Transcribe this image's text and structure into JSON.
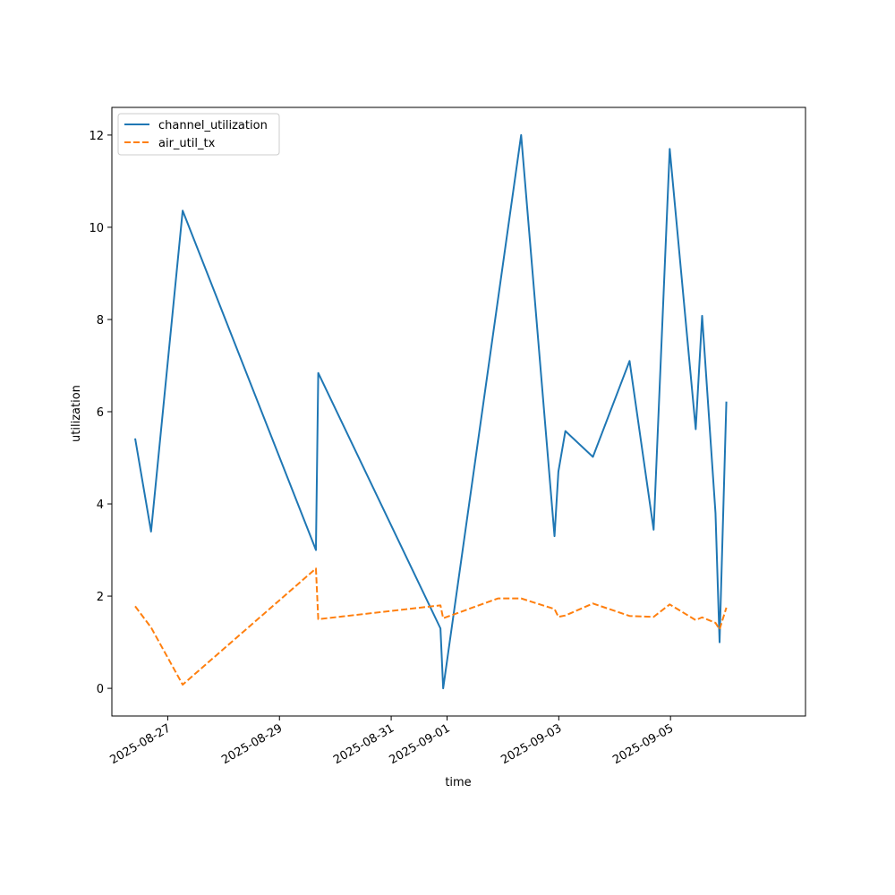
{
  "chart_data": {
    "type": "line",
    "xlabel": "time",
    "ylabel": "utilization",
    "x_is_date": true,
    "xlim": [
      "2025-08-26T00:00",
      "2025-09-07T10:00"
    ],
    "ylim": [
      -0.6,
      12.6
    ],
    "xticks": [
      "2025-08-27",
      "2025-08-29",
      "2025-08-31",
      "2025-09-01",
      "2025-09-03",
      "2025-09-05"
    ],
    "yticks": [
      0,
      2,
      4,
      6,
      8,
      10,
      12
    ],
    "grid": false,
    "legend_position": "top-left",
    "series": [
      {
        "name": "channel_utilization",
        "color": "#1f77b4",
        "style": "solid",
        "points": [
          {
            "x": "2025-08-26T10:00",
            "y": 5.42
          },
          {
            "x": "2025-08-26T16:50",
            "y": 3.4
          },
          {
            "x": "2025-08-27T06:25",
            "y": 10.36
          },
          {
            "x": "2025-08-29T15:40",
            "y": 3.0
          },
          {
            "x": "2025-08-29T16:40",
            "y": 6.84
          },
          {
            "x": "2025-08-31T21:10",
            "y": 1.3
          },
          {
            "x": "2025-08-31T22:20",
            "y": 0.0
          },
          {
            "x": "2025-09-02T07:50",
            "y": 12.0
          },
          {
            "x": "2025-09-02T22:10",
            "y": 3.3
          },
          {
            "x": "2025-09-02T23:50",
            "y": 4.7
          },
          {
            "x": "2025-09-03T02:50",
            "y": 5.58
          },
          {
            "x": "2025-09-03T14:40",
            "y": 5.02
          },
          {
            "x": "2025-09-04T06:25",
            "y": 7.1
          },
          {
            "x": "2025-09-04T16:45",
            "y": 3.44
          },
          {
            "x": "2025-09-04T23:40",
            "y": 11.7
          },
          {
            "x": "2025-09-05T10:50",
            "y": 5.62
          },
          {
            "x": "2025-09-05T13:35",
            "y": 8.08
          },
          {
            "x": "2025-09-05T19:20",
            "y": 3.8
          },
          {
            "x": "2025-09-05T21:05",
            "y": 1.0
          },
          {
            "x": "2025-09-06T00:00",
            "y": 6.22
          }
        ]
      },
      {
        "name": "air_util_tx",
        "color": "#ff7f0e",
        "style": "dashed",
        "points": [
          {
            "x": "2025-08-26T10:00",
            "y": 1.78
          },
          {
            "x": "2025-08-26T16:50",
            "y": 1.32
          },
          {
            "x": "2025-08-27T06:25",
            "y": 0.08
          },
          {
            "x": "2025-08-29T15:40",
            "y": 2.6
          },
          {
            "x": "2025-08-29T16:40",
            "y": 1.5
          },
          {
            "x": "2025-08-31T21:10",
            "y": 1.8
          },
          {
            "x": "2025-08-31T22:20",
            "y": 1.52
          },
          {
            "x": "2025-09-01T21:50",
            "y": 1.95
          },
          {
            "x": "2025-09-02T07:50",
            "y": 1.95
          },
          {
            "x": "2025-09-02T22:10",
            "y": 1.72
          },
          {
            "x": "2025-09-02T23:50",
            "y": 1.55
          },
          {
            "x": "2025-09-03T02:50",
            "y": 1.58
          },
          {
            "x": "2025-09-03T14:40",
            "y": 1.84
          },
          {
            "x": "2025-09-04T06:25",
            "y": 1.57
          },
          {
            "x": "2025-09-04T16:45",
            "y": 1.55
          },
          {
            "x": "2025-09-04T23:40",
            "y": 1.82
          },
          {
            "x": "2025-09-05T10:50",
            "y": 1.48
          },
          {
            "x": "2025-09-05T13:35",
            "y": 1.54
          },
          {
            "x": "2025-09-05T19:20",
            "y": 1.42
          },
          {
            "x": "2025-09-05T21:05",
            "y": 1.28
          },
          {
            "x": "2025-09-06T00:00",
            "y": 1.75
          }
        ]
      }
    ]
  }
}
